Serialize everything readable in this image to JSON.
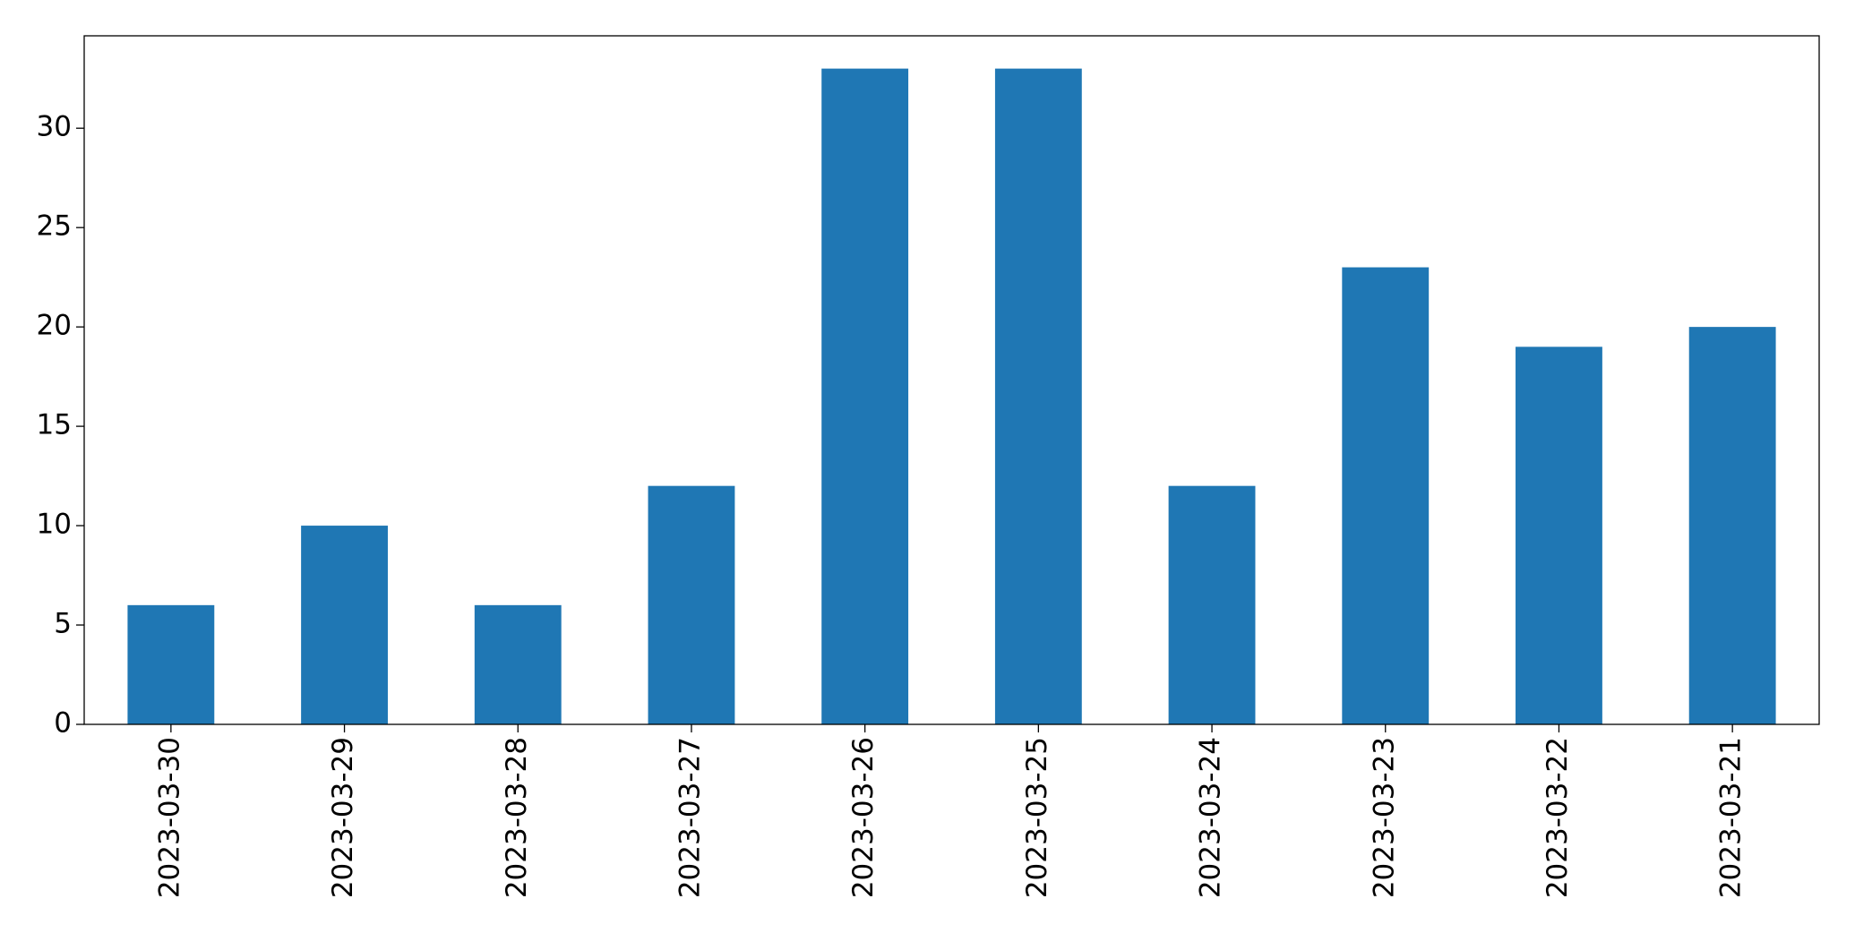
{
  "chart_data": {
    "type": "bar",
    "categories": [
      "2023-03-30",
      "2023-03-29",
      "2023-03-28",
      "2023-03-27",
      "2023-03-26",
      "2023-03-25",
      "2023-03-24",
      "2023-03-23",
      "2023-03-22",
      "2023-03-21"
    ],
    "values": [
      6,
      10,
      6,
      12,
      33,
      33,
      12,
      23,
      19,
      20
    ],
    "color": "#1f77b4",
    "ylim": [
      0,
      34.65
    ],
    "yticks": [
      0,
      5,
      10,
      15,
      20,
      25,
      30
    ],
    "grid": false
  }
}
